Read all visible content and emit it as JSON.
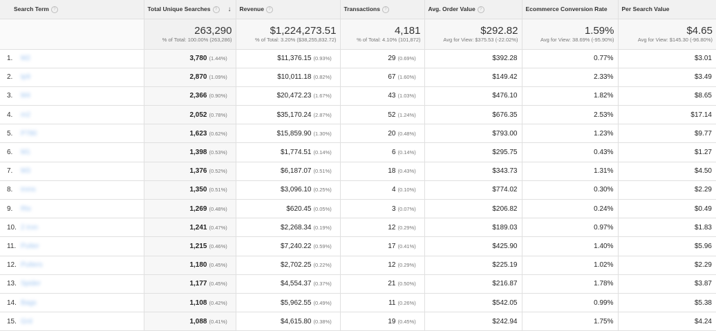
{
  "headers": [
    {
      "label": "Search Term",
      "help": "?"
    },
    {
      "label": "Total Unique Searches",
      "help": "?",
      "sort": "↓"
    },
    {
      "label": "Revenue",
      "help": "?"
    },
    {
      "label": "Transactions",
      "help": "?"
    },
    {
      "label": "Avg. Order Value",
      "help": "?"
    },
    {
      "label": "Ecommerce Conversion Rate"
    },
    {
      "label": "Per Search Value"
    }
  ],
  "totals": [
    {
      "value": "263,290",
      "sub": "% of Total: 100.00% (263,286)"
    },
    {
      "value": "$1,224,273.51",
      "sub": "% of Total: 3.20% ($38,255,832.72)"
    },
    {
      "value": "4,181",
      "sub": "% of Total: 4.10% (101,872)"
    },
    {
      "value": "$292.82",
      "sub": "Avg for View: $375.53 (-22.02%)"
    },
    {
      "value": "1.59%",
      "sub": "Avg for View: 38.69% (-95.90%)"
    },
    {
      "value": "$4.65",
      "sub": "Avg for View: $145.30 (-96.80%)"
    }
  ],
  "rows": [
    {
      "num": "1.",
      "term": "M2",
      "searches": "3,780",
      "searches_pct": "(1.44%)",
      "revenue": "$11,376.15",
      "revenue_pct": "(0.93%)",
      "transactions": "29",
      "transactions_pct": "(0.69%)",
      "aov": "$392.28",
      "conv": "0.77%",
      "psv": "$3.01"
    },
    {
      "num": "2.",
      "term": "tp9",
      "searches": "2,870",
      "searches_pct": "(1.09%)",
      "revenue": "$10,011.18",
      "revenue_pct": "(0.82%)",
      "transactions": "67",
      "transactions_pct": "(1.60%)",
      "aov": "$149.42",
      "conv": "2.33%",
      "psv": "$3.49"
    },
    {
      "num": "3.",
      "term": "M4",
      "searches": "2,366",
      "searches_pct": "(0.90%)",
      "revenue": "$20,472.23",
      "revenue_pct": "(1.67%)",
      "transactions": "43",
      "transactions_pct": "(1.03%)",
      "aov": "$476.10",
      "conv": "1.82%",
      "psv": "$8.65"
    },
    {
      "num": "4.",
      "term": "m2",
      "searches": "2,052",
      "searches_pct": "(0.78%)",
      "revenue": "$35,170.24",
      "revenue_pct": "(2.87%)",
      "transactions": "52",
      "transactions_pct": "(1.24%)",
      "aov": "$676.35",
      "conv": "2.53%",
      "psv": "$17.14"
    },
    {
      "num": "5.",
      "term": "P780",
      "searches": "1,623",
      "searches_pct": "(0.62%)",
      "revenue": "$15,859.90",
      "revenue_pct": "(1.30%)",
      "transactions": "20",
      "transactions_pct": "(0.48%)",
      "aov": "$793.00",
      "conv": "1.23%",
      "psv": "$9.77"
    },
    {
      "num": "6.",
      "term": "M1",
      "searches": "1,398",
      "searches_pct": "(0.53%)",
      "revenue": "$1,774.51",
      "revenue_pct": "(0.14%)",
      "transactions": "6",
      "transactions_pct": "(0.14%)",
      "aov": "$295.75",
      "conv": "0.43%",
      "psv": "$1.27"
    },
    {
      "num": "7.",
      "term": "M3",
      "searches": "1,376",
      "searches_pct": "(0.52%)",
      "revenue": "$6,187.07",
      "revenue_pct": "(0.51%)",
      "transactions": "18",
      "transactions_pct": "(0.43%)",
      "aov": "$343.73",
      "conv": "1.31%",
      "psv": "$4.50"
    },
    {
      "num": "8.",
      "term": "irons",
      "searches": "1,350",
      "searches_pct": "(0.51%)",
      "revenue": "$3,096.10",
      "revenue_pct": "(0.25%)",
      "transactions": "4",
      "transactions_pct": "(0.10%)",
      "aov": "$774.02",
      "conv": "0.30%",
      "psv": "$2.29"
    },
    {
      "num": "9.",
      "term": "Rtx",
      "searches": "1,269",
      "searches_pct": "(0.48%)",
      "revenue": "$620.45",
      "revenue_pct": "(0.05%)",
      "transactions": "3",
      "transactions_pct": "(0.07%)",
      "aov": "$206.82",
      "conv": "0.24%",
      "psv": "$0.49"
    },
    {
      "num": "10.",
      "term": "2 iron",
      "searches": "1,241",
      "searches_pct": "(0.47%)",
      "revenue": "$2,268.34",
      "revenue_pct": "(0.19%)",
      "transactions": "12",
      "transactions_pct": "(0.29%)",
      "aov": "$189.03",
      "conv": "0.97%",
      "psv": "$1.83"
    },
    {
      "num": "11.",
      "term": "Putter",
      "searches": "1,215",
      "searches_pct": "(0.46%)",
      "revenue": "$7,240.22",
      "revenue_pct": "(0.59%)",
      "transactions": "17",
      "transactions_pct": "(0.41%)",
      "aov": "$425.90",
      "conv": "1.40%",
      "psv": "$5.96"
    },
    {
      "num": "12.",
      "term": "Putters",
      "searches": "1,180",
      "searches_pct": "(0.45%)",
      "revenue": "$2,702.25",
      "revenue_pct": "(0.22%)",
      "transactions": "12",
      "transactions_pct": "(0.29%)",
      "aov": "$225.19",
      "conv": "1.02%",
      "psv": "$2.29"
    },
    {
      "num": "13.",
      "term": "Spider",
      "searches": "1,177",
      "searches_pct": "(0.45%)",
      "revenue": "$4,554.37",
      "revenue_pct": "(0.37%)",
      "transactions": "21",
      "transactions_pct": "(0.50%)",
      "aov": "$216.87",
      "conv": "1.78%",
      "psv": "$3.87"
    },
    {
      "num": "14.",
      "term": "Bags",
      "searches": "1,108",
      "searches_pct": "(0.42%)",
      "revenue": "$5,962.55",
      "revenue_pct": "(0.49%)",
      "transactions": "11",
      "transactions_pct": "(0.26%)",
      "aov": "$542.05",
      "conv": "0.99%",
      "psv": "$5.38"
    },
    {
      "num": "15.",
      "term": "Grd",
      "searches": "1,088",
      "searches_pct": "(0.41%)",
      "revenue": "$4,615.80",
      "revenue_pct": "(0.38%)",
      "transactions": "19",
      "transactions_pct": "(0.45%)",
      "aov": "$242.94",
      "conv": "1.75%",
      "psv": "$4.24"
    }
  ]
}
